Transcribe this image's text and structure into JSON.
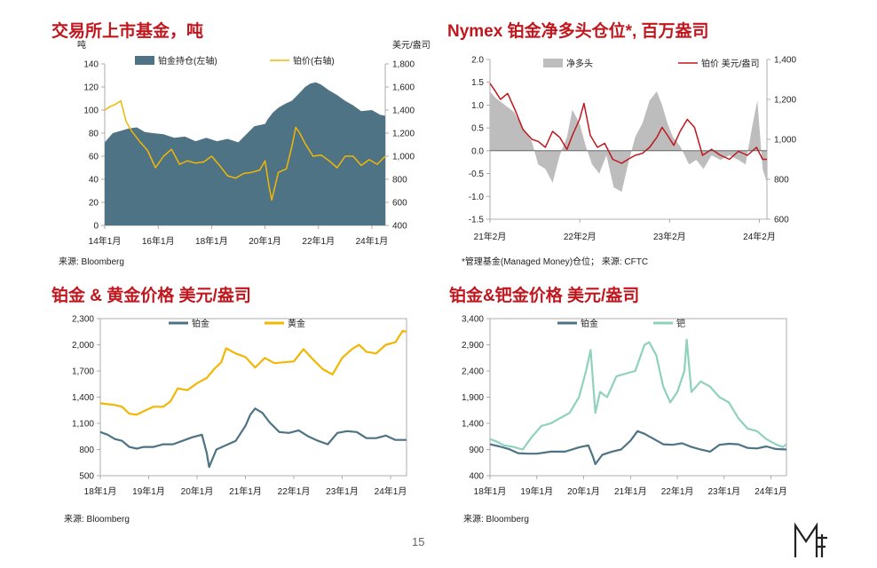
{
  "page": {
    "number": "15",
    "logo_text": "MF"
  },
  "chart_data": [
    {
      "id": "etf",
      "type": "area",
      "title": "交易所上市基金，吨",
      "ylabel_left": "吨",
      "ylabel_right": "美元/盎司",
      "x_range": [
        2014.0,
        2024.5
      ],
      "ylim_left": [
        0,
        140
      ],
      "ylim_right": [
        400,
        1800
      ],
      "yticks_left": [
        0,
        20,
        40,
        60,
        80,
        100,
        120,
        140
      ],
      "yticks_right": [
        400,
        600,
        800,
        1000,
        1200,
        1400,
        1600,
        1800
      ],
      "xticks": [
        {
          "x": 2014.0,
          "label": "14年1月"
        },
        {
          "x": 2016.0,
          "label": "16年1月"
        },
        {
          "x": 2018.0,
          "label": "18年1月"
        },
        {
          "x": 2020.0,
          "label": "20年1月"
        },
        {
          "x": 2022.0,
          "label": "22年1月"
        },
        {
          "x": 2024.0,
          "label": "24年1月"
        }
      ],
      "source": "来源: Bloomberg",
      "series": [
        {
          "name": "铂金持仓(左轴)",
          "axis": "left",
          "style": "area",
          "color": "#4e7384",
          "x": [
            2014.0,
            2014.3,
            2014.6,
            2014.9,
            2015.2,
            2015.5,
            2015.8,
            2016.2,
            2016.6,
            2017.0,
            2017.4,
            2017.8,
            2018.2,
            2018.6,
            2019.0,
            2019.3,
            2019.6,
            2020.0,
            2020.1,
            2020.3,
            2020.5,
            2020.8,
            2021.0,
            2021.3,
            2021.5,
            2021.7,
            2021.9,
            2022.1,
            2022.4,
            2022.7,
            2023.0,
            2023.3,
            2023.6,
            2024.0,
            2024.3,
            2024.5
          ],
          "values": [
            72,
            80,
            82,
            84,
            85,
            81,
            80,
            79,
            76,
            77,
            73,
            76,
            73,
            75,
            72,
            79,
            86,
            88,
            92,
            98,
            102,
            106,
            108,
            115,
            120,
            123,
            124,
            122,
            117,
            113,
            108,
            104,
            99,
            100,
            96,
            95
          ]
        },
        {
          "name": "铂价(右轴)",
          "axis": "right",
          "style": "line",
          "color": "#f2b705",
          "x": [
            2014.0,
            2014.2,
            2014.4,
            2014.6,
            2014.8,
            2015.0,
            2015.3,
            2015.6,
            2015.9,
            2016.2,
            2016.5,
            2016.8,
            2017.1,
            2017.4,
            2017.7,
            2018.0,
            2018.3,
            2018.6,
            2018.9,
            2019.2,
            2019.5,
            2019.8,
            2020.0,
            2020.15,
            2020.25,
            2020.5,
            2020.8,
            2021.0,
            2021.15,
            2021.3,
            2021.5,
            2021.8,
            2022.1,
            2022.4,
            2022.7,
            2023.0,
            2023.3,
            2023.6,
            2023.9,
            2024.2,
            2024.5
          ],
          "values": [
            1400,
            1430,
            1450,
            1480,
            1300,
            1220,
            1130,
            1050,
            900,
            1000,
            1060,
            930,
            960,
            940,
            950,
            1000,
            920,
            830,
            810,
            850,
            860,
            880,
            960,
            740,
            620,
            860,
            890,
            1080,
            1250,
            1200,
            1110,
            1000,
            1010,
            960,
            900,
            1000,
            1000,
            920,
            970,
            930,
            1000
          ]
        }
      ]
    },
    {
      "id": "nymex",
      "type": "area",
      "title": "Nymex 铂金净多头仓位*, 百万盎司",
      "x_range": [
        2021.083,
        2024.167
      ],
      "ylim_left": [
        -1.5,
        2.0
      ],
      "ylim_right": [
        600,
        1400
      ],
      "yticks_left": [
        -1.5,
        -1.0,
        -0.5,
        0.0,
        0.5,
        1.0,
        1.5,
        2.0
      ],
      "yticks_left_labels": [
        "-1.5",
        "-1.0",
        "-0.5",
        "0.0",
        "0.5",
        "1.0",
        "1.5",
        "2.0"
      ],
      "yticks_right": [
        600,
        800,
        1000,
        1200,
        1400
      ],
      "yticks_right_labels": [
        "600",
        "800",
        "1,000",
        "1,200",
        "1,400"
      ],
      "xticks": [
        {
          "x": 2021.083,
          "label": "21年2月"
        },
        {
          "x": 2022.083,
          "label": "22年2月"
        },
        {
          "x": 2023.083,
          "label": "23年2月"
        },
        {
          "x": 2024.083,
          "label": "24年2月"
        }
      ],
      "source": "*管理基金(Managed Money)仓位；  来源: CFTC",
      "series": [
        {
          "name": "净多头",
          "axis": "left",
          "style": "area",
          "color": "#bdbdbd",
          "x": [
            2021.083,
            2021.15,
            2021.25,
            2021.35,
            2021.45,
            2021.55,
            2021.62,
            2021.7,
            2021.78,
            2021.86,
            2021.94,
            2022.0,
            2022.08,
            2022.15,
            2022.22,
            2022.3,
            2022.38,
            2022.46,
            2022.55,
            2022.62,
            2022.7,
            2022.78,
            2022.86,
            2022.94,
            2023.0,
            2023.06,
            2023.12,
            2023.2,
            2023.3,
            2023.38,
            2023.46,
            2023.55,
            2023.65,
            2023.75,
            2023.85,
            2023.93,
            2024.0,
            2024.06,
            2024.12,
            2024.167
          ],
          "values": [
            1.3,
            1.15,
            1.0,
            0.85,
            0.5,
            0.2,
            -0.3,
            -0.4,
            -0.7,
            -0.1,
            0.3,
            0.9,
            0.6,
            0.1,
            -0.3,
            -0.5,
            -0.1,
            -0.8,
            -0.9,
            -0.3,
            0.3,
            0.6,
            1.1,
            1.3,
            1.0,
            0.6,
            0.3,
            0.1,
            -0.3,
            -0.2,
            -0.4,
            -0.1,
            -0.2,
            -0.1,
            -0.2,
            -0.3,
            0.5,
            1.1,
            -0.4,
            -0.7
          ]
        },
        {
          "name": "铂价 美元/盎司",
          "axis": "right",
          "style": "line",
          "color": "#c0161d",
          "x": [
            2021.083,
            2021.13,
            2021.2,
            2021.28,
            2021.36,
            2021.45,
            2021.55,
            2021.62,
            2021.7,
            2021.78,
            2021.86,
            2021.94,
            2022.0,
            2022.08,
            2022.13,
            2022.2,
            2022.28,
            2022.36,
            2022.45,
            2022.55,
            2022.62,
            2022.7,
            2022.78,
            2022.86,
            2022.94,
            2023.0,
            2023.06,
            2023.13,
            2023.2,
            2023.28,
            2023.36,
            2023.45,
            2023.55,
            2023.65,
            2023.75,
            2023.85,
            2023.95,
            2024.05,
            2024.12,
            2024.167
          ],
          "values": [
            1280,
            1250,
            1200,
            1230,
            1150,
            1050,
            1000,
            990,
            960,
            1040,
            1010,
            950,
            1020,
            1100,
            1180,
            1020,
            960,
            980,
            900,
            880,
            900,
            920,
            930,
            960,
            1010,
            1060,
            1020,
            970,
            1040,
            1100,
            1060,
            920,
            950,
            920,
            900,
            940,
            920,
            960,
            900,
            900
          ]
        }
      ]
    },
    {
      "id": "pt_au",
      "type": "line",
      "title": "铂金 & 黄金价格 美元/盎司",
      "x_range": [
        2018.0,
        2024.33
      ],
      "ylim": [
        500,
        2300
      ],
      "yticks": [
        500,
        800,
        1100,
        1400,
        1700,
        2000,
        2300
      ],
      "ytick_labels": [
        "500",
        "800",
        "1,100",
        "1,400",
        "1,700",
        "2,000",
        "2,300"
      ],
      "xticks": [
        {
          "x": 2018.0,
          "label": "18年1月"
        },
        {
          "x": 2019.0,
          "label": "19年1月"
        },
        {
          "x": 2020.0,
          "label": "20年1月"
        },
        {
          "x": 2021.0,
          "label": "21年1月"
        },
        {
          "x": 2022.0,
          "label": "22年1月"
        },
        {
          "x": 2023.0,
          "label": "23年1月"
        },
        {
          "x": 2024.0,
          "label": "24年1月"
        }
      ],
      "source": "来源: Bloomberg",
      "series": [
        {
          "name": "铂金",
          "color": "#4e7384",
          "x": [
            2018.0,
            2018.15,
            2018.3,
            2018.45,
            2018.6,
            2018.75,
            2018.9,
            2019.1,
            2019.3,
            2019.5,
            2019.7,
            2019.9,
            2020.1,
            2020.2,
            2020.25,
            2020.4,
            2020.6,
            2020.8,
            2021.0,
            2021.1,
            2021.2,
            2021.35,
            2021.5,
            2021.7,
            2021.9,
            2022.1,
            2022.3,
            2022.5,
            2022.7,
            2022.9,
            2023.1,
            2023.3,
            2023.5,
            2023.7,
            2023.9,
            2024.1,
            2024.33
          ],
          "values": [
            1000,
            970,
            920,
            900,
            830,
            810,
            830,
            830,
            860,
            860,
            900,
            940,
            970,
            760,
            600,
            800,
            850,
            900,
            1070,
            1200,
            1270,
            1220,
            1110,
            1000,
            990,
            1020,
            950,
            900,
            860,
            990,
            1010,
            1000,
            930,
            930,
            960,
            910,
            910
          ]
        },
        {
          "name": "黄金",
          "color": "#f2b705",
          "x": [
            2018.0,
            2018.15,
            2018.3,
            2018.45,
            2018.6,
            2018.75,
            2018.9,
            2019.1,
            2019.3,
            2019.45,
            2019.6,
            2019.8,
            2020.0,
            2020.2,
            2020.35,
            2020.5,
            2020.6,
            2020.8,
            2021.0,
            2021.2,
            2021.4,
            2021.6,
            2021.8,
            2022.0,
            2022.2,
            2022.4,
            2022.6,
            2022.8,
            2023.0,
            2023.2,
            2023.35,
            2023.5,
            2023.7,
            2023.9,
            2024.1,
            2024.25,
            2024.33
          ],
          "values": [
            1330,
            1320,
            1310,
            1290,
            1210,
            1200,
            1240,
            1290,
            1290,
            1350,
            1500,
            1480,
            1560,
            1620,
            1720,
            1800,
            1960,
            1900,
            1860,
            1740,
            1850,
            1790,
            1800,
            1810,
            1950,
            1830,
            1720,
            1660,
            1850,
            1950,
            2000,
            1920,
            1900,
            2000,
            2030,
            2160,
            2150
          ]
        }
      ]
    },
    {
      "id": "pt_pd",
      "type": "line",
      "title": "铂金&钯金价格 美元/盎司",
      "x_range": [
        2018.0,
        2024.33
      ],
      "ylim": [
        400,
        3400
      ],
      "yticks": [
        400,
        900,
        1400,
        1900,
        2400,
        2900,
        3400
      ],
      "ytick_labels": [
        "400",
        "900",
        "1,400",
        "1,900",
        "2,400",
        "2,900",
        "3,400"
      ],
      "xticks": [
        {
          "x": 2018.0,
          "label": "18年1月"
        },
        {
          "x": 2019.0,
          "label": "19年1月"
        },
        {
          "x": 2020.0,
          "label": "20年1月"
        },
        {
          "x": 2021.0,
          "label": "21年1月"
        },
        {
          "x": 2022.0,
          "label": "22年1月"
        },
        {
          "x": 2023.0,
          "label": "23年1月"
        },
        {
          "x": 2024.0,
          "label": "24年1月"
        }
      ],
      "source": "来源: Bloomberg",
      "series": [
        {
          "name": "铂金",
          "color": "#4e7384",
          "x": [
            2018.0,
            2018.2,
            2018.4,
            2018.6,
            2018.8,
            2019.0,
            2019.3,
            2019.6,
            2019.9,
            2020.1,
            2020.2,
            2020.25,
            2020.4,
            2020.6,
            2020.8,
            2021.0,
            2021.15,
            2021.3,
            2021.5,
            2021.7,
            2021.9,
            2022.1,
            2022.3,
            2022.5,
            2022.7,
            2022.9,
            2023.1,
            2023.3,
            2023.5,
            2023.7,
            2023.9,
            2024.1,
            2024.33
          ],
          "values": [
            1000,
            960,
            910,
            830,
            820,
            820,
            860,
            860,
            940,
            980,
            760,
            620,
            800,
            860,
            900,
            1070,
            1250,
            1200,
            1100,
            1000,
            990,
            1020,
            950,
            900,
            860,
            990,
            1010,
            1000,
            930,
            920,
            960,
            910,
            900
          ]
        },
        {
          "name": "钯",
          "color": "#8fd1bd",
          "x": [
            2018.0,
            2018.15,
            2018.3,
            2018.5,
            2018.7,
            2018.9,
            2019.1,
            2019.3,
            2019.5,
            2019.7,
            2019.9,
            2020.05,
            2020.15,
            2020.25,
            2020.35,
            2020.5,
            2020.7,
            2020.9,
            2021.1,
            2021.3,
            2021.4,
            2021.55,
            2021.7,
            2021.85,
            2022.0,
            2022.15,
            2022.2,
            2022.3,
            2022.5,
            2022.7,
            2022.9,
            2023.1,
            2023.3,
            2023.5,
            2023.7,
            2023.9,
            2024.1,
            2024.25,
            2024.33
          ],
          "values": [
            1100,
            1050,
            980,
            950,
            900,
            1150,
            1350,
            1400,
            1500,
            1600,
            1900,
            2400,
            2800,
            1600,
            2000,
            1900,
            2300,
            2350,
            2400,
            2900,
            2950,
            2700,
            2100,
            1800,
            2000,
            2400,
            3000,
            2000,
            2200,
            2100,
            1900,
            1800,
            1500,
            1300,
            1250,
            1100,
            1000,
            950,
            1000
          ]
        }
      ]
    }
  ]
}
